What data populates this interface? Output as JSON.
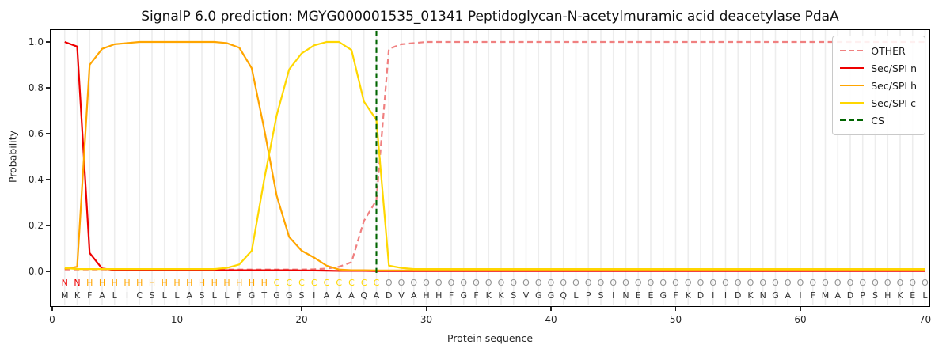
{
  "title": "SignalP 6.0 prediction: MGYG000001535_01341 Peptidoglycan-N-acetylmuramic acid deacetylase PdaA",
  "axes": {
    "xlabel": "Protein sequence",
    "ylabel": "Probability",
    "ytick_labels": [
      "1.0",
      "0.8",
      "0.6",
      "0.4",
      "0.2",
      "0.0"
    ],
    "ytick_values": [
      1.0,
      0.8,
      0.6,
      0.4,
      0.2,
      0.0
    ],
    "xtick_labels": [
      "0",
      "10",
      "20",
      "30",
      "40",
      "50",
      "60",
      "70"
    ],
    "xtick_values": [
      0,
      10,
      20,
      30,
      40,
      50,
      60,
      70
    ]
  },
  "legend": {
    "items": [
      {
        "label": "OTHER",
        "color": "#F08080",
        "dashed": true
      },
      {
        "label": "Sec/SPI n",
        "color": "#EE0000",
        "dashed": false
      },
      {
        "label": "Sec/SPI h",
        "color": "#FFA500",
        "dashed": false
      },
      {
        "label": "Sec/SPI c",
        "color": "#FFD700",
        "dashed": false
      },
      {
        "label": "CS",
        "color": "#006400",
        "dashed": true
      }
    ]
  },
  "sequence": {
    "amino_acids": "MKFALICSLLASLLFGTGGSIAAAQADVAHHFGFKKSVGGQLPSINEEGFKDIIDKNGAIFMADPSHKEL",
    "region_labels": "NNHHHHHHHHHHHHHHHCCCCCCCCCOOOOOOOOOOOOOOOOOOOOOOOOOOOOOOOOOOOOOOOOOOOO",
    "region_colors": {
      "N": "#EE0000",
      "H": "#FFA500",
      "C": "#FFD700",
      "O": "#909090"
    }
  },
  "chart_data": {
    "type": "line",
    "title": "SignalP 6.0 prediction: MGYG000001535_01341 Peptidoglycan-N-acetylmuramic acid deacetylase PdaA",
    "xlabel": "Protein sequence",
    "ylabel": "Probability",
    "xlim": [
      0,
      70.5
    ],
    "ylim": [
      0,
      1.05
    ],
    "grid": "vertical-per-residue",
    "legend_position": "upper right",
    "cs_position": 26,
    "x": [
      1,
      2,
      3,
      4,
      5,
      6,
      7,
      8,
      9,
      10,
      11,
      12,
      13,
      14,
      15,
      16,
      17,
      18,
      19,
      20,
      21,
      22,
      23,
      24,
      25,
      26,
      27,
      28,
      29,
      30,
      31,
      32,
      33,
      34,
      35,
      36,
      37,
      38,
      39,
      40,
      41,
      42,
      43,
      44,
      45,
      46,
      47,
      48,
      49,
      50,
      51,
      52,
      53,
      54,
      55,
      56,
      57,
      58,
      59,
      60,
      61,
      62,
      63,
      64,
      65,
      66,
      67,
      68,
      69,
      70
    ],
    "series": [
      {
        "name": "OTHER",
        "color": "#F08080",
        "dashed": true,
        "values": [
          0.008,
          0.008,
          0.008,
          0.008,
          0.008,
          0.008,
          0.008,
          0.008,
          0.008,
          0.008,
          0.008,
          0.008,
          0.008,
          0.008,
          0.008,
          0.008,
          0.008,
          0.008,
          0.008,
          0.008,
          0.009,
          0.012,
          0.02,
          0.04,
          0.22,
          0.31,
          0.97,
          0.99,
          0.995,
          1.0,
          1.0,
          1.0,
          1.0,
          1.0,
          1.0,
          1.0,
          1.0,
          1.0,
          1.0,
          1.0,
          1.0,
          1.0,
          1.0,
          1.0,
          1.0,
          1.0,
          1.0,
          1.0,
          1.0,
          1.0,
          1.0,
          1.0,
          1.0,
          1.0,
          1.0,
          1.0,
          1.0,
          1.0,
          1.0,
          1.0,
          1.0,
          1.0,
          1.0,
          1.0,
          1.0,
          1.0,
          1.0,
          1.0,
          1.0,
          1.0
        ]
      },
      {
        "name": "Sec/SPI n",
        "color": "#EE0000",
        "dashed": false,
        "values": [
          1.0,
          0.98,
          0.08,
          0.012,
          0.006,
          0.005,
          0.005,
          0.005,
          0.005,
          0.005,
          0.005,
          0.005,
          0.005,
          0.005,
          0.005,
          0.005,
          0.005,
          0.005,
          0.005,
          0.004,
          0.004,
          0.003,
          0.002,
          0.002,
          0.002,
          0.001,
          0.001,
          0.001,
          0.001,
          0.001,
          0.001,
          0.001,
          0.001,
          0.001,
          0.001,
          0.001,
          0.001,
          0.001,
          0.001,
          0.001,
          0.001,
          0.001,
          0.001,
          0.001,
          0.001,
          0.001,
          0.001,
          0.001,
          0.001,
          0.001,
          0.001,
          0.001,
          0.001,
          0.001,
          0.001,
          0.001,
          0.001,
          0.001,
          0.001,
          0.001,
          0.001,
          0.001,
          0.001,
          0.001,
          0.001,
          0.001,
          0.001,
          0.001,
          0.001,
          0.001
        ]
      },
      {
        "name": "Sec/SPI h",
        "color": "#FFA500",
        "dashed": false,
        "values": [
          0.01,
          0.02,
          0.9,
          0.97,
          0.99,
          0.995,
          1.0,
          1.0,
          1.0,
          1.0,
          1.0,
          1.0,
          1.0,
          0.995,
          0.975,
          0.885,
          0.62,
          0.33,
          0.15,
          0.09,
          0.06,
          0.025,
          0.008,
          0.005,
          0.005,
          0.004,
          0.004,
          0.004,
          0.004,
          0.004,
          0.004,
          0.004,
          0.004,
          0.004,
          0.004,
          0.004,
          0.004,
          0.004,
          0.004,
          0.004,
          0.004,
          0.004,
          0.004,
          0.004,
          0.004,
          0.004,
          0.004,
          0.004,
          0.004,
          0.004,
          0.004,
          0.004,
          0.004,
          0.004,
          0.004,
          0.004,
          0.004,
          0.004,
          0.004,
          0.004,
          0.004,
          0.004,
          0.004,
          0.004,
          0.004,
          0.004,
          0.004,
          0.004,
          0.004,
          0.004
        ]
      },
      {
        "name": "Sec/SPI c",
        "color": "#FFD700",
        "dashed": false,
        "values": [
          0.015,
          0.01,
          0.01,
          0.01,
          0.01,
          0.01,
          0.01,
          0.01,
          0.01,
          0.01,
          0.01,
          0.01,
          0.01,
          0.015,
          0.03,
          0.09,
          0.4,
          0.68,
          0.88,
          0.95,
          0.985,
          1.0,
          1.0,
          0.965,
          0.74,
          0.66,
          0.025,
          0.015,
          0.01,
          0.01,
          0.01,
          0.01,
          0.01,
          0.01,
          0.01,
          0.01,
          0.01,
          0.01,
          0.01,
          0.01,
          0.01,
          0.01,
          0.01,
          0.01,
          0.01,
          0.01,
          0.01,
          0.01,
          0.01,
          0.01,
          0.01,
          0.01,
          0.01,
          0.01,
          0.01,
          0.01,
          0.01,
          0.01,
          0.01,
          0.01,
          0.01,
          0.01,
          0.01,
          0.01,
          0.01,
          0.01,
          0.01,
          0.01,
          0.01,
          0.01
        ]
      }
    ],
    "colors": {
      "grid": "#EDEDED",
      "cs_line": "#006400",
      "axis_text": "#262626"
    }
  }
}
